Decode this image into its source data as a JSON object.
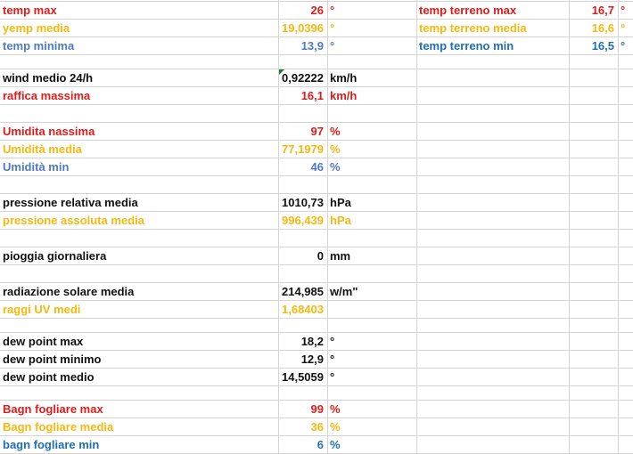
{
  "colors": {
    "red": "#e01b1b",
    "yellow": "#f5b80f",
    "blue": "#4f7ac4",
    "dark": "#111111",
    "teal_blue": "#1f6fb3"
  },
  "rows": [
    {
      "label": "temp max",
      "value": "26",
      "unit": "°",
      "color": "red"
    },
    {
      "label": "yemp media",
      "value": "19,0396",
      "unit": "°",
      "color": "yellow"
    },
    {
      "label": "temp minima",
      "value": "13,9",
      "unit": "°",
      "color": "blue"
    },
    {
      "label": "",
      "value": "",
      "unit": "",
      "color": "dark"
    },
    {
      "label": "wind medio  24/h",
      "value": "0,92222",
      "unit": "km/h",
      "color": "dark",
      "flag": true
    },
    {
      "label": "raffica massima",
      "value": "16,1",
      "unit": "km/h",
      "color": "red"
    },
    {
      "label": "",
      "value": "",
      "unit": "",
      "color": "dark"
    },
    {
      "label": "Umidita nassima",
      "value": "97",
      "unit": "%",
      "color": "red"
    },
    {
      "label": "Umidità media",
      "value": "77,1979",
      "unit": "%",
      "color": "yellow"
    },
    {
      "label": "Umidità min",
      "value": "46",
      "unit": "%",
      "color": "blue"
    },
    {
      "label": "",
      "value": "",
      "unit": "",
      "color": "dark"
    },
    {
      "label": "pressione relativa media",
      "value": "1010,73",
      "unit": "hPa",
      "color": "dark"
    },
    {
      "label": "pressione assoluta media",
      "value": "996,439",
      "unit": "hPa",
      "color": "yellow"
    },
    {
      "label": "",
      "value": "",
      "unit": "",
      "color": "dark"
    },
    {
      "label": "pioggia giornaliera",
      "value": "0",
      "unit": "mm",
      "color": "dark"
    },
    {
      "label": "",
      "value": "",
      "unit": "",
      "color": "dark"
    },
    {
      "label": "radiazione solare media",
      "value": "214,985",
      "unit": "w/m\"",
      "color": "dark"
    },
    {
      "label": "raggi UV medi",
      "value": "1,68403",
      "unit": "",
      "color": "yellow"
    },
    {
      "label": "",
      "value": "",
      "unit": "",
      "color": "dark"
    },
    {
      "label": "dew point max",
      "value": "18,2",
      "unit": "°",
      "color": "dark"
    },
    {
      "label": "dew point minimo",
      "value": "12,9",
      "unit": "°",
      "color": "dark"
    },
    {
      "label": "dew point medio",
      "value": "14,5059",
      "unit": "°",
      "color": "dark"
    },
    {
      "label": "",
      "value": "",
      "unit": "",
      "color": "dark"
    },
    {
      "label": "Bagn fogliare max",
      "value": "99",
      "unit": "%",
      "color": "red"
    },
    {
      "label": "Bagn fogliare media",
      "value": "36",
      "unit": "%",
      "color": "yellow"
    },
    {
      "label": "bagn fogliare min",
      "value": "6",
      "unit": "%",
      "color": "teal_blue"
    }
  ],
  "right_rows": [
    {
      "label": "temp terreno max",
      "value": "16,7",
      "unit": "°",
      "color": "red"
    },
    {
      "label": "temp terreno media",
      "value": "16,6",
      "unit": "°",
      "color": "yellow"
    },
    {
      "label": "temp terreno min",
      "value": "16,5",
      "unit": "°",
      "color": "teal_blue"
    }
  ]
}
